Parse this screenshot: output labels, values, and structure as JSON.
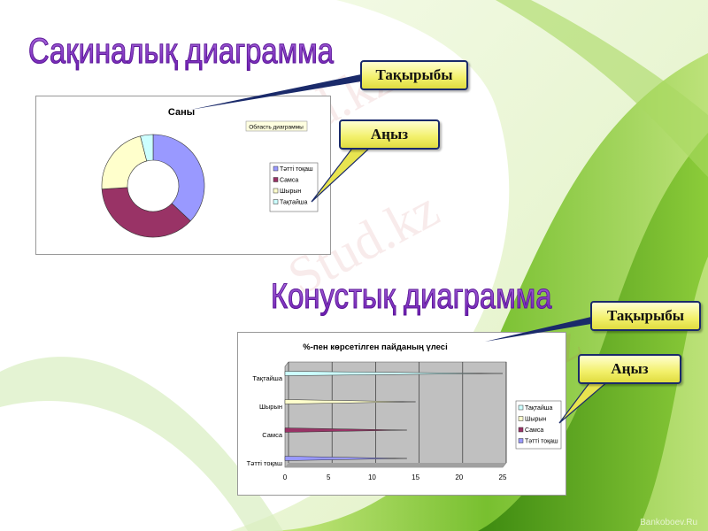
{
  "slide": {
    "title1": "Сақиналық диаграмма",
    "title2": "Конустық диаграмма",
    "watermark": "Stud.kz",
    "corner_watermark": "Bankoboev.Ru"
  },
  "callouts": {
    "title_label": "Тақырыбы",
    "legend_label": "Аңыз"
  },
  "colors": {
    "series1": "#9999ff",
    "series2": "#993366",
    "series3": "#ffffcc",
    "series4": "#ccffff",
    "callout": "#f2f06a",
    "title": "#7a28c0"
  },
  "chart_data": [
    {
      "type": "pie",
      "variant": "doughnut",
      "title": "Саны",
      "tooltip": "Область диаграммы",
      "categories": [
        "Тәтті тоқаш",
        "Самса",
        "Шырын",
        "Тақтайша"
      ],
      "values": [
        37,
        37,
        22,
        4
      ],
      "colors": [
        "#9999ff",
        "#993366",
        "#ffffcc",
        "#ccffff"
      ],
      "legend": "right"
    },
    {
      "type": "bar",
      "variant": "horizontal-cone-3d",
      "title": "%-пен көрсетілген пайданың үлесі",
      "categories": [
        "Тәтті тоқаш",
        "Самса",
        "Шырын",
        "Тақтайша"
      ],
      "values": [
        14,
        14,
        15,
        25
      ],
      "colors": [
        "#9999ff",
        "#993366",
        "#ffffcc",
        "#ccffff"
      ],
      "xlim": [
        0,
        25
      ],
      "xticks": [
        "0",
        "5",
        "10",
        "15",
        "20",
        "25"
      ],
      "legend_order": [
        "Тақтайша",
        "Шырын",
        "Самса",
        "Тәтті тоқаш"
      ],
      "legend": "right",
      "grid": true
    }
  ]
}
